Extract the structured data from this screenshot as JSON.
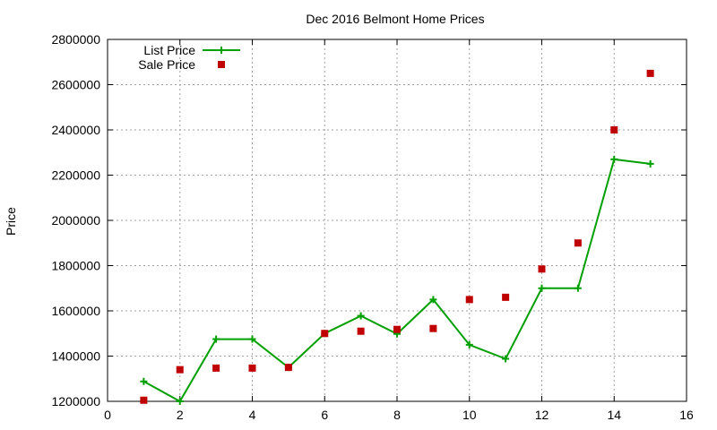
{
  "chart_data": {
    "type": "line",
    "title": "Dec 2016 Belmont Home Prices",
    "xlabel": "",
    "ylabel": "Price",
    "xlim": [
      0,
      16
    ],
    "ylim": [
      1200000,
      2800000
    ],
    "x_ticks": [
      0,
      2,
      4,
      6,
      8,
      10,
      12,
      14,
      16
    ],
    "y_ticks": [
      1200000,
      1400000,
      1600000,
      1800000,
      2000000,
      2200000,
      2400000,
      2600000,
      2800000
    ],
    "grid": true,
    "legend_position": "top-left",
    "series": [
      {
        "name": "List Price",
        "style": "line-with-plus-markers",
        "color": "#00a000",
        "x": [
          1,
          2,
          3,
          4,
          5,
          6,
          7,
          8,
          9,
          10,
          11,
          12,
          13,
          14,
          15
        ],
        "y": [
          1288000,
          1200000,
          1475000,
          1475000,
          1350000,
          1500000,
          1578000,
          1498000,
          1650000,
          1450000,
          1388000,
          1700000,
          1700000,
          2270000,
          2250000
        ]
      },
      {
        "name": "Sale Price",
        "style": "square-markers",
        "color": "#c00000",
        "x": [
          1,
          2,
          3,
          4,
          5,
          6,
          7,
          8,
          9,
          10,
          11,
          12,
          13,
          14,
          15
        ],
        "y": [
          1205000,
          1340000,
          1347000,
          1347000,
          1350000,
          1500000,
          1510000,
          1518000,
          1522000,
          1650000,
          1660000,
          1785000,
          1900000,
          2400000,
          2650000
        ]
      }
    ]
  }
}
